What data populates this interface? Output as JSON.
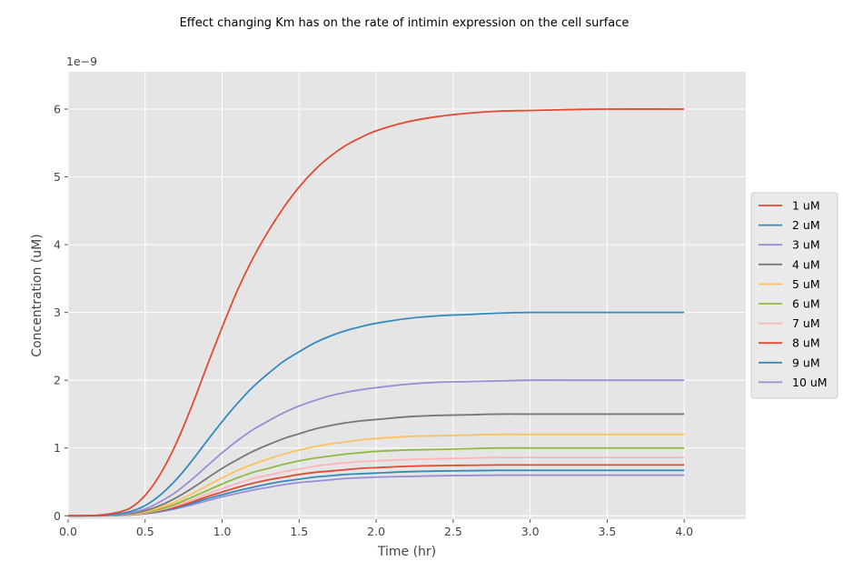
{
  "chart_data": {
    "type": "line",
    "title": "Effect changing Km has on the rate of intimin expression on the cell surface",
    "xlabel": "Time (hr)",
    "ylabel": "Concentration (uM)",
    "y_offset_label": "1e−9",
    "xlim": [
      0.0,
      4.4
    ],
    "ylim": [
      -0.05,
      6.55
    ],
    "xticks": [
      0.0,
      0.5,
      1.0,
      1.5,
      2.0,
      2.5,
      3.0,
      3.5,
      4.0
    ],
    "xtick_labels": [
      "0.0",
      "0.5",
      "1.0",
      "1.5",
      "2.0",
      "2.5",
      "3.0",
      "3.5",
      "4.0"
    ],
    "yticks": [
      0,
      1,
      2,
      3,
      4,
      5,
      6
    ],
    "ytick_labels": [
      "0",
      "1",
      "2",
      "3",
      "4",
      "5",
      "6"
    ],
    "grid": true,
    "legend_position": "center-right outside",
    "x": [
      0.0,
      0.1,
      0.2,
      0.3,
      0.4,
      0.5,
      0.6,
      0.7,
      0.8,
      0.9,
      1.0,
      1.1,
      1.2,
      1.3,
      1.4,
      1.5,
      1.6,
      1.7,
      1.8,
      1.9,
      2.0,
      2.2,
      2.4,
      2.6,
      2.8,
      3.0,
      3.2,
      3.5,
      4.0
    ],
    "series": [
      {
        "name": "1 uM",
        "color": "#E24A33",
        "values": [
          0.0,
          0.0,
          0.01,
          0.04,
          0.11,
          0.3,
          0.62,
          1.06,
          1.6,
          2.2,
          2.78,
          3.33,
          3.8,
          4.2,
          4.55,
          4.85,
          5.1,
          5.3,
          5.46,
          5.58,
          5.68,
          5.81,
          5.89,
          5.94,
          5.97,
          5.98,
          5.99,
          6.0,
          6.0
        ]
      },
      {
        "name": "2 uM",
        "color": "#348ABD",
        "values": [
          0.0,
          0.0,
          0.005,
          0.02,
          0.06,
          0.15,
          0.31,
          0.53,
          0.8,
          1.1,
          1.39,
          1.66,
          1.9,
          2.1,
          2.28,
          2.42,
          2.55,
          2.65,
          2.73,
          2.79,
          2.84,
          2.91,
          2.95,
          2.97,
          2.99,
          3.0,
          3.0,
          3.0,
          3.0
        ]
      },
      {
        "name": "3 uM",
        "color": "#988ED5",
        "values": [
          0.0,
          0.0,
          0.003,
          0.013,
          0.04,
          0.1,
          0.21,
          0.35,
          0.53,
          0.73,
          0.93,
          1.11,
          1.27,
          1.4,
          1.52,
          1.62,
          1.7,
          1.77,
          1.82,
          1.86,
          1.89,
          1.94,
          1.97,
          1.98,
          1.99,
          2.0,
          2.0,
          2.0,
          2.0
        ]
      },
      {
        "name": "4 uM",
        "color": "#777777",
        "values": [
          0.0,
          0.0,
          0.002,
          0.01,
          0.03,
          0.075,
          0.155,
          0.265,
          0.4,
          0.55,
          0.7,
          0.83,
          0.95,
          1.05,
          1.14,
          1.21,
          1.28,
          1.33,
          1.37,
          1.4,
          1.42,
          1.46,
          1.48,
          1.49,
          1.5,
          1.5,
          1.5,
          1.5,
          1.5
        ]
      },
      {
        "name": "5 uM",
        "color": "#FBC15E",
        "values": [
          0.0,
          0.0,
          0.002,
          0.008,
          0.024,
          0.06,
          0.125,
          0.21,
          0.32,
          0.44,
          0.56,
          0.67,
          0.76,
          0.84,
          0.91,
          0.97,
          1.02,
          1.06,
          1.09,
          1.12,
          1.14,
          1.17,
          1.18,
          1.19,
          1.2,
          1.2,
          1.2,
          1.2,
          1.2
        ]
      },
      {
        "name": "6 uM",
        "color": "#8EBA42",
        "values": [
          0.0,
          0.0,
          0.002,
          0.007,
          0.02,
          0.05,
          0.1,
          0.175,
          0.27,
          0.37,
          0.47,
          0.56,
          0.64,
          0.7,
          0.76,
          0.81,
          0.85,
          0.88,
          0.91,
          0.93,
          0.95,
          0.97,
          0.98,
          0.99,
          1.0,
          1.0,
          1.0,
          1.0,
          1.0
        ]
      },
      {
        "name": "7 uM",
        "color": "#FFB5B8",
        "values": [
          0.0,
          0.0,
          0.001,
          0.006,
          0.017,
          0.043,
          0.088,
          0.15,
          0.23,
          0.32,
          0.4,
          0.48,
          0.55,
          0.6,
          0.65,
          0.69,
          0.73,
          0.76,
          0.78,
          0.8,
          0.81,
          0.83,
          0.84,
          0.85,
          0.86,
          0.86,
          0.86,
          0.86,
          0.86
        ]
      },
      {
        "name": "8 uM",
        "color": "#E24A33",
        "values": [
          0.0,
          0.0,
          0.001,
          0.005,
          0.015,
          0.038,
          0.077,
          0.13,
          0.2,
          0.28,
          0.35,
          0.42,
          0.48,
          0.53,
          0.57,
          0.61,
          0.64,
          0.66,
          0.68,
          0.7,
          0.71,
          0.73,
          0.74,
          0.745,
          0.75,
          0.75,
          0.75,
          0.75,
          0.75
        ]
      },
      {
        "name": "9 uM",
        "color": "#348ABD",
        "values": [
          0.0,
          0.0,
          0.001,
          0.004,
          0.013,
          0.033,
          0.068,
          0.115,
          0.18,
          0.25,
          0.31,
          0.37,
          0.42,
          0.47,
          0.51,
          0.54,
          0.57,
          0.59,
          0.61,
          0.62,
          0.63,
          0.65,
          0.66,
          0.665,
          0.67,
          0.67,
          0.67,
          0.67,
          0.67
        ]
      },
      {
        "name": "10 uM",
        "color": "#988ED5",
        "values": [
          0.0,
          0.0,
          0.001,
          0.004,
          0.012,
          0.03,
          0.061,
          0.104,
          0.16,
          0.22,
          0.28,
          0.33,
          0.38,
          0.42,
          0.46,
          0.49,
          0.51,
          0.53,
          0.55,
          0.56,
          0.57,
          0.58,
          0.59,
          0.595,
          0.6,
          0.6,
          0.6,
          0.6,
          0.6
        ]
      }
    ]
  }
}
